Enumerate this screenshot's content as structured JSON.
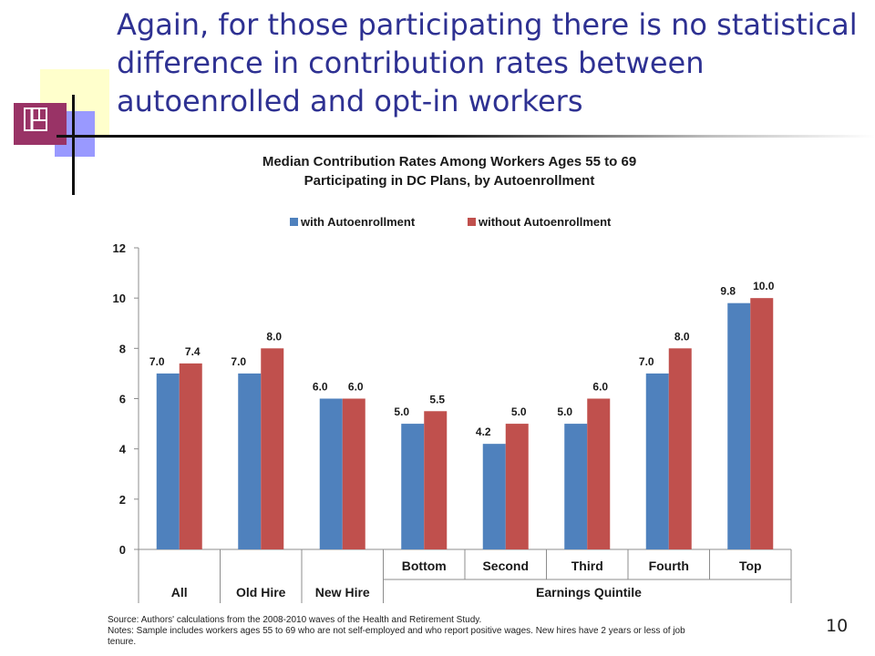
{
  "slide": {
    "title": "Again, for those participating there is no statistical difference in contribution rates between autoenrolled and opt-in workers",
    "page_number": "10"
  },
  "chart_data": {
    "type": "bar",
    "title": "Median Contribution Rates Among Workers Ages 55 to 69",
    "subtitle": "Participating in DC Plans, by Autoenrollment",
    "categories": [
      "All",
      "Old Hire",
      "New Hire",
      "Bottom",
      "Second",
      "Third",
      "Fourth",
      "Top"
    ],
    "category_group_label": "Earnings Quintile",
    "series": [
      {
        "name": "with Autoenrollment",
        "color": "#4f81bd",
        "values": [
          7.0,
          7.0,
          6.0,
          5.0,
          4.2,
          5.0,
          7.0,
          9.8
        ],
        "labels": [
          "7.0",
          "7.0",
          "6.0",
          "5.0",
          "4.2",
          "5.0",
          "7.0",
          "9.8"
        ]
      },
      {
        "name": "without Autoenrollment",
        "color": "#c0504d",
        "values": [
          7.4,
          8.0,
          6.0,
          5.5,
          5.0,
          6.0,
          8.0,
          10.0
        ],
        "labels": [
          "7.4",
          "8.0",
          "6.0",
          "5.5",
          "5.0",
          "6.0",
          "8.0",
          "10.0"
        ]
      }
    ],
    "ylim": [
      0,
      12
    ],
    "yticks": [
      "0",
      "2",
      "4",
      "6",
      "8",
      "10",
      "12"
    ],
    "legend_position": "top",
    "grid": false
  },
  "notes": {
    "source": "Source: Authors' calculations from the 2008-2010 waves of the Health and Retirement Study.",
    "notes_line1": "Notes: Sample includes workers ages 55 to 69 who are not self-employed and who report positive wages. New hires have 2 years or less of job",
    "notes_line2": "tenure."
  }
}
